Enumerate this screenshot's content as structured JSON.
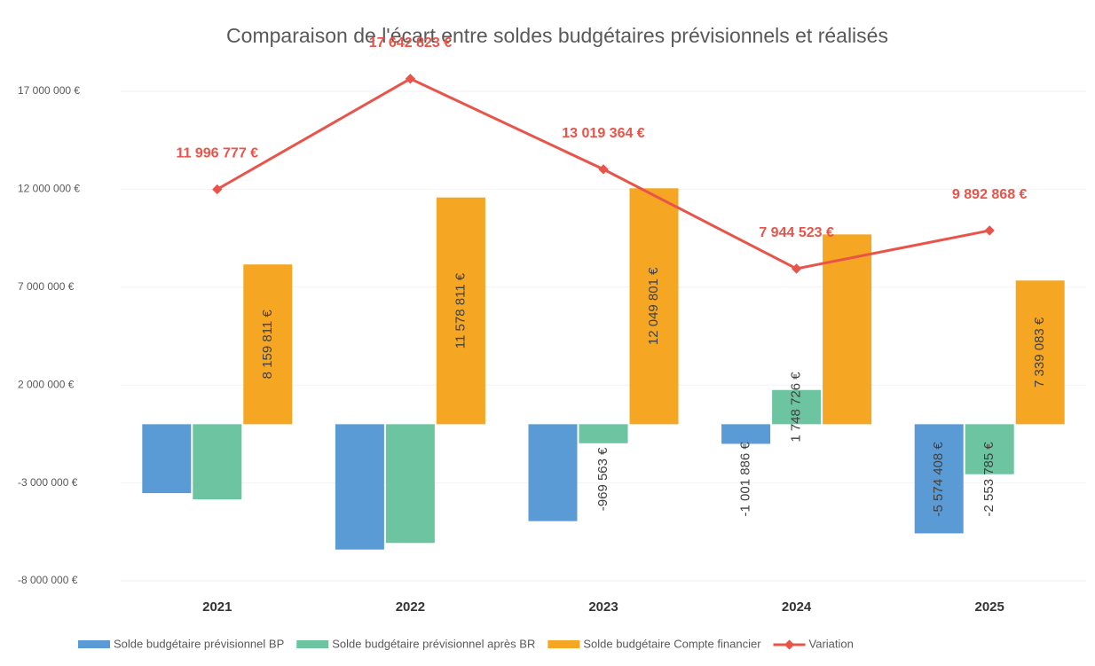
{
  "chart_data": {
    "type": "bar",
    "title": "Comparaison de l'écart entre soldes budgétaires prévisionnels et réalisés",
    "categories": [
      "2021",
      "2022",
      "2023",
      "2024",
      "2025"
    ],
    "series": [
      {
        "name": "Solde budgétaire prévisionnel BP",
        "color": "#5b9bd5",
        "values": [
          -3520000,
          -6400000,
          -4950000,
          -1001886,
          -5574408
        ],
        "value_labels": [
          null,
          null,
          null,
          "-1 001 886 €",
          "-5 574 408 €"
        ]
      },
      {
        "name": "Solde budgétaire prévisionnel après BR",
        "color": "#6cc5a0",
        "values": [
          -3836966,
          -6064012,
          -969563,
          1748726,
          -2553785
        ],
        "value_labels": [
          null,
          null,
          "-969 563 €",
          "1 748 726 €",
          "-2 553 785 €"
        ]
      },
      {
        "name": "Solde budgétaire Compte financier",
        "color": "#f5a623",
        "values": [
          8159811,
          11578811,
          12049801,
          9693249,
          7339083
        ],
        "value_labels": [
          "8 159 811 €",
          "11 578 811 €",
          "12 049 801 €",
          null,
          "7 339 083 €"
        ]
      },
      {
        "name": "Variation",
        "type": "line",
        "color": "#e8544a",
        "values": [
          11996777,
          17642823,
          13019364,
          7944523,
          9892868
        ],
        "value_labels": [
          "11 996 777 €",
          "17 642 823 €",
          "13 019 364 €",
          "7 944 523 €",
          "9 892 868 €"
        ]
      }
    ],
    "ylim": [
      -8000000,
      17000000
    ],
    "yticks": [
      {
        "value": -8000000,
        "label": "-8 000 000 €"
      },
      {
        "value": -3000000,
        "label": "-3 000 000 €"
      },
      {
        "value": 2000000,
        "label": "2 000 000 €"
      },
      {
        "value": 7000000,
        "label": "7 000 000 €"
      },
      {
        "value": 12000000,
        "label": "12 000 000 €"
      },
      {
        "value": 17000000,
        "label": "17 000 000 €"
      }
    ],
    "legend": "bottom"
  }
}
